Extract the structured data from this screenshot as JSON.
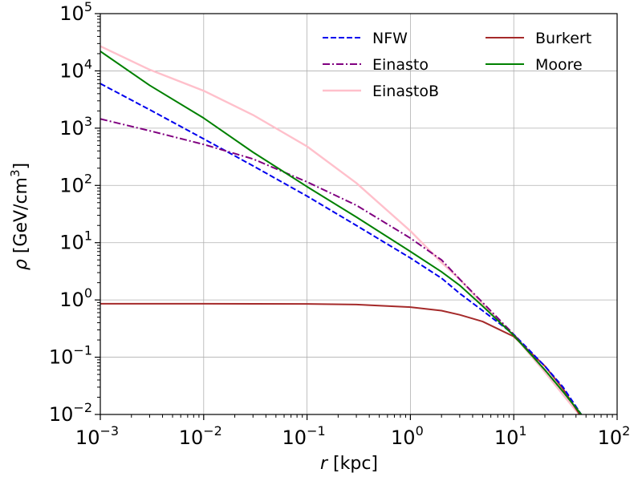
{
  "chart_data": {
    "type": "line",
    "xscale": "log",
    "yscale": "log",
    "xlim": [
      0.001,
      100
    ],
    "ylim": [
      0.01,
      100000
    ],
    "grid": true,
    "xlabel": {
      "var": "r",
      "unit": " [kpc]"
    },
    "ylabel": {
      "var": "ρ",
      "unit_prefix": " [GeV/cm",
      "unit_exp": "3",
      "unit_suffix": "]"
    },
    "x_ticks": [
      {
        "value": 0.001,
        "base": "10",
        "exp": "−3"
      },
      {
        "value": 0.01,
        "base": "10",
        "exp": "−2"
      },
      {
        "value": 0.1,
        "base": "10",
        "exp": "−1"
      },
      {
        "value": 1,
        "base": "10",
        "exp": "0"
      },
      {
        "value": 10,
        "base": "10",
        "exp": "1"
      },
      {
        "value": 100,
        "base": "10",
        "exp": "2"
      }
    ],
    "y_ticks": [
      {
        "value": 0.01,
        "base": "10",
        "exp": "−2"
      },
      {
        "value": 0.1,
        "base": "10",
        "exp": "−1"
      },
      {
        "value": 1,
        "base": "10",
        "exp": "0"
      },
      {
        "value": 10,
        "base": "10",
        "exp": "1"
      },
      {
        "value": 100,
        "base": "10",
        "exp": "2"
      },
      {
        "value": 1000,
        "base": "10",
        "exp": "3"
      },
      {
        "value": 10000,
        "base": "10",
        "exp": "4"
      },
      {
        "value": 100000,
        "base": "10",
        "exp": "5"
      }
    ],
    "legend_position": "top-right",
    "series": [
      {
        "name": "NFW",
        "color": "#0000ee",
        "style": "dashed",
        "x": [
          0.001,
          0.003,
          0.01,
          0.03,
          0.1,
          0.3,
          1,
          2,
          3,
          5,
          10,
          20,
          30,
          45
        ],
        "y": [
          6000,
          2100,
          650,
          220,
          65,
          20,
          5.4,
          2.4,
          1.3,
          0.65,
          0.25,
          0.07,
          0.03,
          0.01
        ]
      },
      {
        "name": "Einasto",
        "color": "#800080",
        "style": "dashdot",
        "x": [
          0.001,
          0.003,
          0.01,
          0.03,
          0.1,
          0.3,
          1,
          2,
          3,
          5,
          10,
          20,
          30,
          45
        ],
        "y": [
          1450,
          900,
          520,
          290,
          115,
          45,
          12,
          5.0,
          2.3,
          0.9,
          0.25,
          0.06,
          0.025,
          0.01
        ]
      },
      {
        "name": "EinastoB",
        "color": "#ffc0cb",
        "style": "solid",
        "x": [
          0.001,
          0.003,
          0.01,
          0.03,
          0.1,
          0.3,
          1,
          2,
          3,
          5,
          10,
          20,
          30,
          45
        ],
        "y": [
          27000,
          10500,
          4500,
          1700,
          480,
          110,
          16,
          4.5,
          2.3,
          0.85,
          0.24,
          0.055,
          0.022,
          0.009
        ]
      },
      {
        "name": "Burkert",
        "color": "#a52a2a",
        "style": "solid",
        "x": [
          0.001,
          0.01,
          0.1,
          0.3,
          1,
          2,
          3,
          5,
          10,
          20,
          30,
          45
        ],
        "y": [
          0.86,
          0.86,
          0.85,
          0.83,
          0.75,
          0.65,
          0.55,
          0.42,
          0.23,
          0.07,
          0.028,
          0.009
        ]
      },
      {
        "name": "Moore",
        "color": "#008000",
        "style": "solid",
        "x": [
          0.001,
          0.003,
          0.01,
          0.03,
          0.1,
          0.3,
          1,
          2,
          3,
          5,
          10,
          20,
          30,
          45
        ],
        "y": [
          22000,
          5600,
          1500,
          380,
          95,
          28,
          7,
          3.1,
          1.8,
          0.78,
          0.24,
          0.06,
          0.025,
          0.01
        ]
      }
    ]
  }
}
